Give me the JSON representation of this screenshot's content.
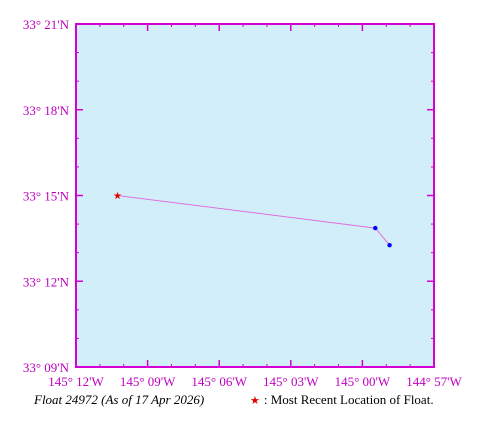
{
  "map": {
    "lon_range": [
      -145.2,
      -144.95
    ],
    "lat_range": [
      33.15,
      33.35
    ],
    "colors": {
      "ocean": "#d2eef8",
      "axis": "#d400d4",
      "label": "#c000c0",
      "track": "#e070e0",
      "point": "#0000ff",
      "recent": "#e00000"
    },
    "x_ticks": [
      {
        "value": -145.2,
        "label": "145° 12'W"
      },
      {
        "value": -145.15,
        "label": "145° 09'W"
      },
      {
        "value": -145.1,
        "label": "145° 06'W"
      },
      {
        "value": -145.05,
        "label": "145° 03'W"
      },
      {
        "value": -145.0,
        "label": "145° 00'W"
      },
      {
        "value": -144.95,
        "label": "144° 57'W"
      }
    ],
    "y_ticks": [
      {
        "value": 33.35,
        "label": "33° 21'N"
      },
      {
        "value": 33.3,
        "label": "33° 18'N"
      },
      {
        "value": 33.25,
        "label": "33° 15'N"
      },
      {
        "value": 33.2,
        "label": "33° 12'N"
      },
      {
        "value": 33.15,
        "label": "33° 09'N"
      }
    ],
    "track": [
      {
        "lon": -145.171,
        "lat": 33.25,
        "recent": true
      },
      {
        "lon": -144.991,
        "lat": 33.231,
        "recent": false
      },
      {
        "lon": -144.981,
        "lat": 33.221,
        "recent": false
      }
    ]
  },
  "caption": {
    "float_label": "Float 24972 (As of 17 Apr 2026)",
    "legend_symbol": "★",
    "legend_text": ": Most Recent Location of Float."
  }
}
